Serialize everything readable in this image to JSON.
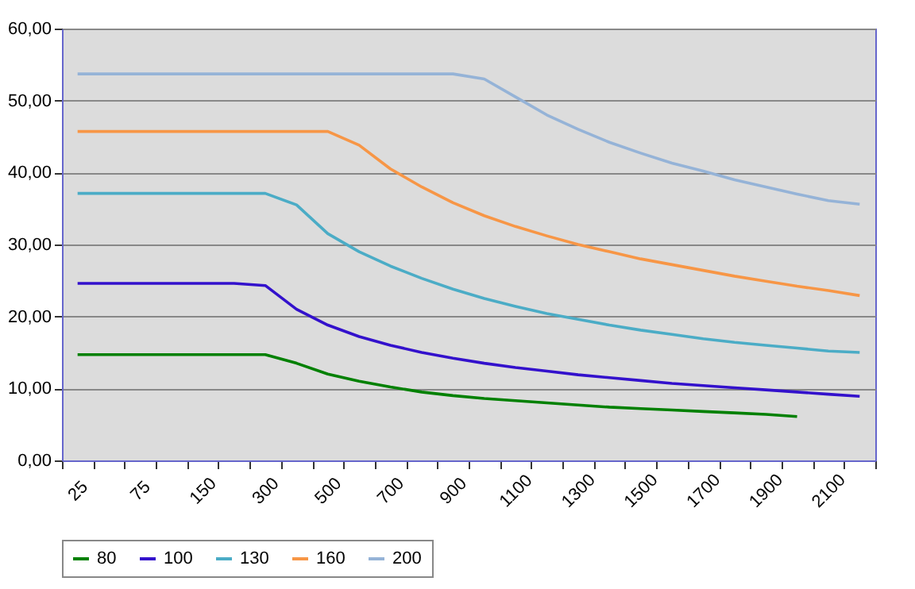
{
  "chart_data": {
    "type": "line",
    "categories": [
      "25",
      null,
      "75",
      null,
      "150",
      null,
      "300",
      null,
      "500",
      null,
      "700",
      null,
      "900",
      null,
      "1100",
      null,
      "1300",
      null,
      "1500",
      null,
      "1700",
      null,
      "1900",
      null,
      "2100",
      null
    ],
    "series": [
      {
        "name": "80",
        "color": "#008000",
        "values": [
          14.7,
          14.7,
          14.7,
          14.7,
          14.7,
          14.7,
          14.7,
          13.5,
          12.0,
          11.0,
          10.2,
          9.5,
          9.0,
          8.6,
          8.3,
          8.0,
          7.7,
          7.4,
          7.2,
          7.0,
          6.8,
          6.6,
          6.4,
          6.1,
          null,
          null
        ]
      },
      {
        "name": "100",
        "color": "#3311cc",
        "values": [
          24.6,
          24.6,
          24.6,
          24.6,
          24.6,
          24.6,
          24.3,
          21.0,
          18.8,
          17.2,
          16.0,
          15.0,
          14.2,
          13.5,
          12.9,
          12.4,
          11.9,
          11.5,
          11.1,
          10.7,
          10.4,
          10.1,
          9.8,
          9.5,
          9.2,
          8.9
        ]
      },
      {
        "name": "130",
        "color": "#4bacc6",
        "values": [
          37.1,
          37.1,
          37.1,
          37.1,
          37.1,
          37.1,
          37.1,
          35.5,
          31.5,
          29.0,
          27.0,
          25.3,
          23.8,
          22.5,
          21.4,
          20.4,
          19.6,
          18.8,
          18.1,
          17.5,
          16.9,
          16.4,
          16.0,
          15.6,
          15.2,
          15.0
        ]
      },
      {
        "name": "160",
        "color": "#f79646",
        "values": [
          45.7,
          45.7,
          45.7,
          45.7,
          45.7,
          45.7,
          45.7,
          45.7,
          45.7,
          43.8,
          40.5,
          38.0,
          35.8,
          34.0,
          32.5,
          31.2,
          30.0,
          29.0,
          28.0,
          27.2,
          26.4,
          25.6,
          24.9,
          24.2,
          23.6,
          22.9
        ]
      },
      {
        "name": "200",
        "color": "#95b3d7",
        "values": [
          53.7,
          53.7,
          53.7,
          53.7,
          53.7,
          53.7,
          53.7,
          53.7,
          53.7,
          53.7,
          53.7,
          53.7,
          53.7,
          53.0,
          50.5,
          48.0,
          46.0,
          44.2,
          42.7,
          41.3,
          40.2,
          39.0,
          38.0,
          37.0,
          36.1,
          35.6
        ]
      }
    ],
    "ylim": [
      0,
      60
    ],
    "yticks": [
      {
        "value": 0,
        "label": "0,00"
      },
      {
        "value": 10,
        "label": "10,00"
      },
      {
        "value": 20,
        "label": "20,00"
      },
      {
        "value": 30,
        "label": "30,00"
      },
      {
        "value": 40,
        "label": "40,00"
      },
      {
        "value": 50,
        "label": "50,00"
      },
      {
        "value": 60,
        "label": "60,00"
      }
    ],
    "grid": "y",
    "legend": "bottom"
  }
}
